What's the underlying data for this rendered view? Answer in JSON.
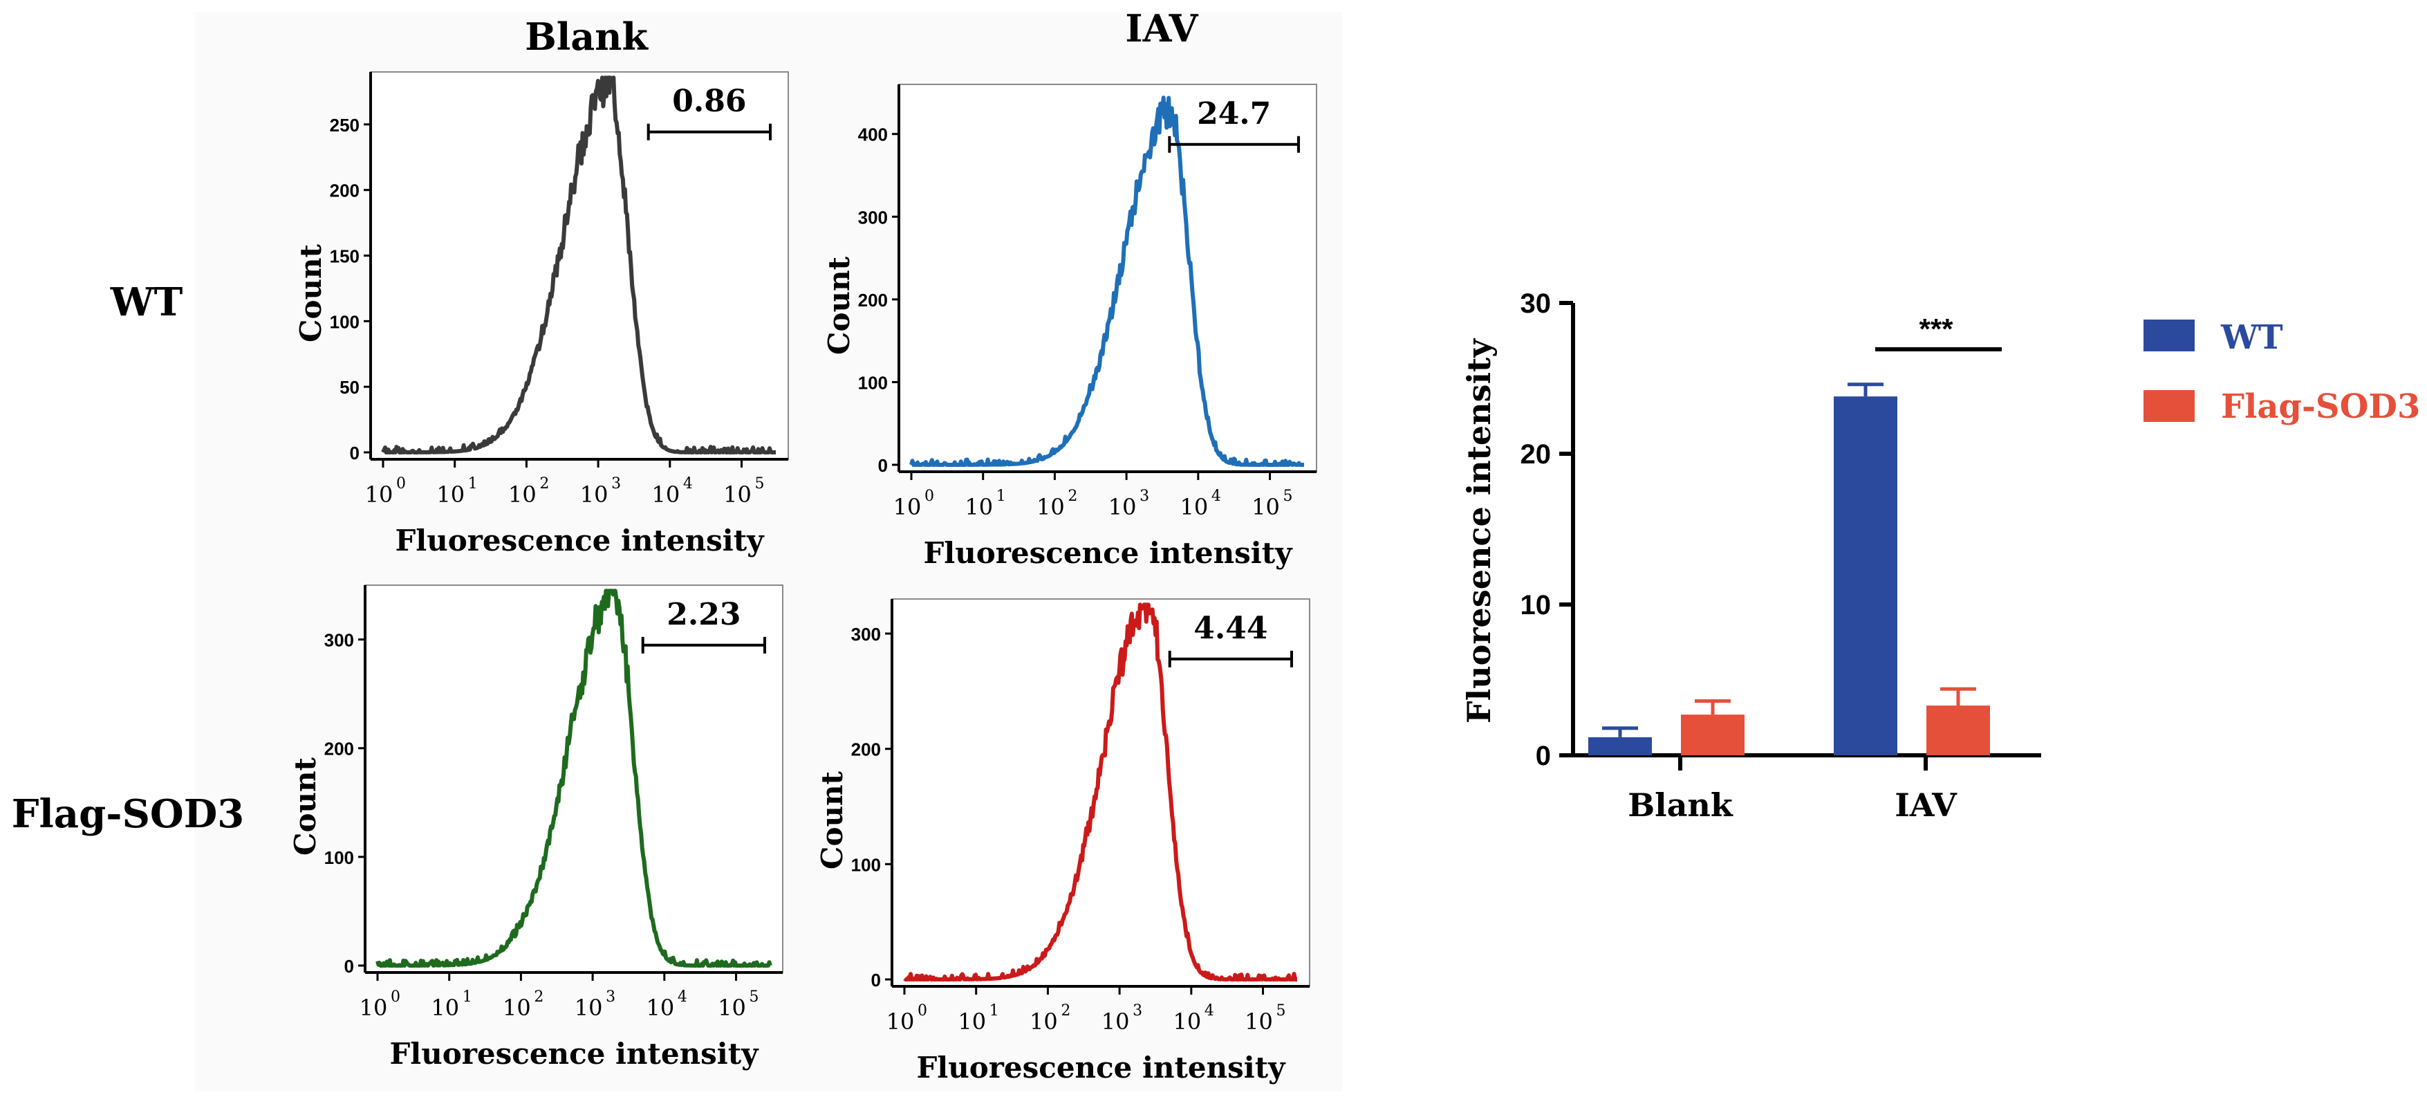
{
  "column_labels": [
    "Blank",
    "IAV"
  ],
  "row_labels": [
    "WT",
    "Flag-SOD3"
  ],
  "histogram_panels": [
    {
      "id": "wt-blank",
      "color": "#3a3a3a",
      "gate_value": "0.86",
      "y_label": "Count",
      "x_label": "Fluorescence intensity",
      "y_ticks": [
        "0",
        "50",
        "100",
        "150",
        "200",
        "250"
      ],
      "x_ticks": [
        "10",
        "10",
        "10",
        "10",
        "10",
        "10"
      ],
      "x_exponents": [
        "0",
        "1",
        "2",
        "3",
        "4",
        "5"
      ],
      "chart_data": {
        "type": "area",
        "x_scale": "log10",
        "xlim": [
          1,
          300000
        ],
        "ylim": [
          0,
          290
        ],
        "peak_log10": 3.15,
        "peak_count": 280,
        "gate_log10": [
          3.7,
          5.4
        ],
        "gate_percent": 0.86
      }
    },
    {
      "id": "wt-iav",
      "color": "#1f6fb8",
      "gate_value": "24.7",
      "y_label": "Count",
      "x_label": "Fluorescence intensity",
      "y_ticks": [
        "0",
        "100",
        "200",
        "300",
        "400"
      ],
      "x_ticks": [
        "10",
        "10",
        "10",
        "10",
        "10",
        "10"
      ],
      "x_exponents": [
        "0",
        "1",
        "2",
        "3",
        "4",
        "5"
      ],
      "chart_data": {
        "type": "area",
        "x_scale": "log10",
        "xlim": [
          1,
          300000
        ],
        "ylim": [
          0,
          460
        ],
        "peak_log10": 3.6,
        "peak_count": 430,
        "gate_log10": [
          3.6,
          5.4
        ],
        "gate_percent": 24.7
      }
    },
    {
      "id": "sod3-blank",
      "color": "#1e6b1e",
      "gate_value": "2.23",
      "y_label": "Count",
      "x_label": "Fluorescence intensity",
      "y_ticks": [
        "0",
        "100",
        "200",
        "300"
      ],
      "x_ticks": [
        "10",
        "10",
        "10",
        "10",
        "10",
        "10"
      ],
      "x_exponents": [
        "0",
        "1",
        "2",
        "3",
        "4",
        "5"
      ],
      "chart_data": {
        "type": "area",
        "x_scale": "log10",
        "xlim": [
          1,
          300000
        ],
        "ylim": [
          0,
          350
        ],
        "peak_log10": 3.3,
        "peak_count": 340,
        "gate_log10": [
          3.7,
          5.4
        ],
        "gate_percent": 2.23
      }
    },
    {
      "id": "sod3-iav",
      "color": "#cc1a1a",
      "gate_value": "4.44",
      "y_label": "Count",
      "x_label": "Fluorescence intensity",
      "y_ticks": [
        "0",
        "100",
        "200",
        "300"
      ],
      "x_ticks": [
        "10",
        "10",
        "10",
        "10",
        "10",
        "10"
      ],
      "x_exponents": [
        "0",
        "1",
        "2",
        "3",
        "4",
        "5"
      ],
      "chart_data": {
        "type": "area",
        "x_scale": "log10",
        "xlim": [
          1,
          300000
        ],
        "ylim": [
          0,
          330
        ],
        "peak_log10": 3.4,
        "peak_count": 325,
        "gate_log10": [
          3.7,
          5.4
        ],
        "gate_percent": 4.44
      }
    }
  ],
  "chart_data": {
    "type": "bar",
    "categories": [
      "Blank",
      "IAV"
    ],
    "series": [
      {
        "name": "WT",
        "color": "#2b4a9e",
        "values": [
          1.2,
          23.8
        ],
        "errors": [
          0.6,
          0.8
        ]
      },
      {
        "name": "Flag-SOD3",
        "color": "#e5503a",
        "values": [
          2.7,
          3.3
        ],
        "errors": [
          0.9,
          1.1
        ]
      }
    ],
    "ylabel": "Fluoresence intensity",
    "xlabel": "",
    "ylim": [
      0,
      30
    ],
    "y_ticks": [
      "0",
      "10",
      "20",
      "30"
    ],
    "significance": {
      "category": "IAV",
      "label": "***"
    },
    "legend_position": "top-right"
  }
}
